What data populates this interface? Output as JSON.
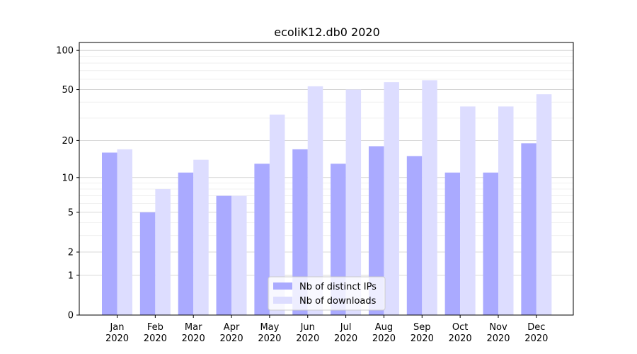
{
  "chart_data": {
    "type": "bar",
    "title": "ecoliK12.db0 2020",
    "xlabel": "",
    "ylabel": "",
    "categories": [
      [
        "Jan",
        "2020"
      ],
      [
        "Feb",
        "2020"
      ],
      [
        "Mar",
        "2020"
      ],
      [
        "Apr",
        "2020"
      ],
      [
        "May",
        "2020"
      ],
      [
        "Jun",
        "2020"
      ],
      [
        "Jul",
        "2020"
      ],
      [
        "Aug",
        "2020"
      ],
      [
        "Sep",
        "2020"
      ],
      [
        "Oct",
        "2020"
      ],
      [
        "Nov",
        "2020"
      ],
      [
        "Dec",
        "2020"
      ]
    ],
    "series": [
      {
        "name": "Nb of distinct IPs",
        "color": "#aaaaff",
        "values": [
          16,
          5,
          11,
          7,
          13,
          17,
          13,
          18,
          15,
          11,
          11,
          19
        ]
      },
      {
        "name": "Nb of downloads",
        "color": "#ddddff",
        "values": [
          17,
          8,
          14,
          7,
          32,
          53,
          50,
          57,
          59,
          37,
          37,
          46
        ]
      }
    ],
    "y_scale": "log(1+y)",
    "ylim": [
      0,
      120
    ],
    "y_ticks": [
      0,
      1,
      2,
      5,
      10,
      20,
      50,
      100
    ],
    "grid": true,
    "legend_position": "lower-center"
  }
}
